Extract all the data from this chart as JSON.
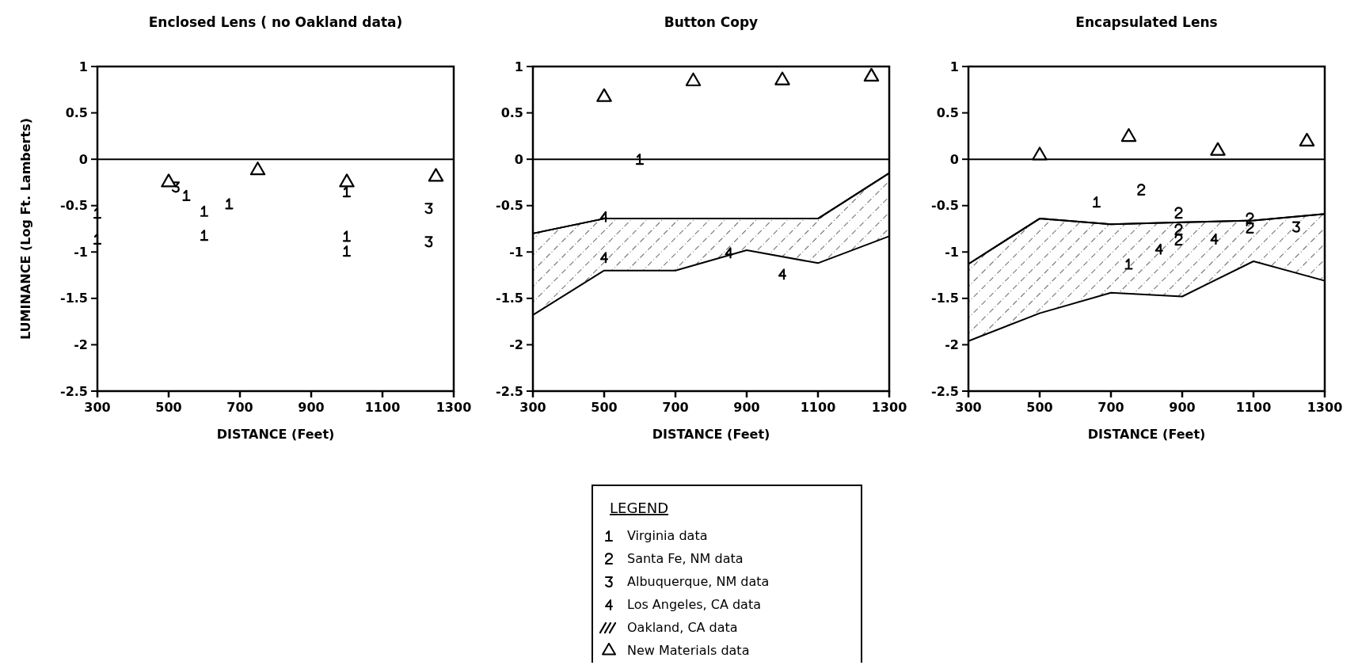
{
  "chart_data": [
    {
      "type": "scatter",
      "title": "Enclosed Lens ( no Oakland data)",
      "xlabel": "DISTANCE (Feet)",
      "ylabel": "LUMINANCE  (Log Ft. Lamberts)",
      "xlim": [
        300,
        1300
      ],
      "xticks": [
        300,
        500,
        700,
        900,
        1100,
        1300
      ],
      "ylim": [
        -2.5,
        1
      ],
      "yticks": [
        1,
        0.5,
        0,
        -0.5,
        -1,
        -1.5,
        -2,
        -2.5
      ],
      "ref_lines": [
        {
          "axis": "y",
          "value": 0
        }
      ],
      "series": [
        {
          "color": "#000000",
          "x": [
            300,
            300,
            550,
            600,
            600,
            670,
            1000,
            1000,
            1000
          ],
          "values": [
            -0.58,
            -0.86,
            -0.39,
            -0.56,
            -0.82,
            -0.48,
            -0.35,
            -0.83,
            -0.99
          ]
        },
        {
          "color": "#000000"
        },
        {
          "color": "#000000",
          "x": [
            520,
            1230,
            1230
          ],
          "values": [
            -0.3,
            -0.53,
            -0.89
          ]
        },
        {
          "color": "#000000"
        },
        {
          "type": "line",
          "color": "#000000"
        },
        {
          "color": "#000000",
          "marker": "triangle",
          "x": [
            500,
            750,
            1000,
            1250
          ],
          "values": [
            -0.25,
            -0.12,
            -0.25,
            -0.19
          ]
        }
      ]
    },
    {
      "type": "scatter",
      "title": "Button Copy",
      "xlabel": "DISTANCE (Feet)",
      "xlim": [
        300,
        1300
      ],
      "xticks": [
        300,
        500,
        700,
        900,
        1100,
        1300
      ],
      "ylim": [
        -2.5,
        1
      ],
      "yticks": [
        1,
        0.5,
        0,
        -0.5,
        -1,
        -1.5,
        -2,
        -2.5
      ],
      "ref_lines": [
        {
          "axis": "y",
          "value": 0
        }
      ],
      "series": [
        {
          "color": "#000000",
          "x": [
            600
          ],
          "values": [
            0
          ]
        },
        {
          "color": "#000000"
        },
        {
          "color": "#000000"
        },
        {
          "color": "#000000",
          "x": [
            500,
            500,
            850,
            1000
          ],
          "values": [
            -0.62,
            -1.06,
            -1.01,
            -1.24
          ]
        },
        {
          "type": "line",
          "color": "#000000",
          "x": [
            300,
            500,
            700,
            900,
            1100,
            1300
          ],
          "values": [
            -0.8,
            -0.64,
            -0.64,
            -0.64,
            -0.64,
            -0.15
          ],
          "upper": [
            -0.8,
            -0.64,
            -0.64,
            -0.64,
            -0.64,
            -0.15
          ],
          "lower": [
            -1.68,
            -1.2,
            -1.2,
            -0.98,
            -1.12,
            -0.83
          ]
        },
        {
          "color": "#000000",
          "marker": "triangle",
          "x": [
            500,
            750,
            1000,
            1250
          ],
          "values": [
            0.67,
            0.84,
            0.85,
            0.89
          ]
        }
      ]
    },
    {
      "type": "scatter",
      "title": "Encapsulated Lens",
      "xlabel": "DISTANCE (Feet)",
      "xlim": [
        300,
        1300
      ],
      "xticks": [
        300,
        500,
        700,
        900,
        1100,
        1300
      ],
      "ylim": [
        -2.5,
        1
      ],
      "yticks": [
        1,
        0.5,
        0,
        -0.5,
        -1,
        -1.5,
        -2,
        -2.5
      ],
      "ref_lines": [
        {
          "axis": "y",
          "value": 0
        }
      ],
      "legend": "bottom",
      "legend_title": "LEGEND",
      "series": [
        {
          "name": "Virginia data",
          "color": "#000000",
          "x": [
            660,
            750
          ],
          "values": [
            -0.46,
            -1.13
          ]
        },
        {
          "name": "Santa Fe, NM data",
          "color": "#000000",
          "x": [
            785,
            890,
            890,
            890,
            1090,
            1090
          ],
          "values": [
            -0.33,
            -0.58,
            -0.76,
            -0.87,
            -0.64,
            -0.74
          ]
        },
        {
          "name": "Albuquerque, NM data",
          "color": "#000000",
          "x": [
            1220
          ],
          "values": [
            -0.73
          ]
        },
        {
          "name": "Los Angeles, CA data",
          "color": "#000000",
          "x": [
            835,
            990
          ],
          "values": [
            -0.97,
            -0.86
          ]
        },
        {
          "name": "Oakland, CA data",
          "type": "line",
          "color": "#000000",
          "x": [
            300,
            500,
            700,
            900,
            1100,
            1300
          ],
          "values": [
            -1.13,
            -0.64,
            -0.7,
            -0.68,
            -0.66,
            -0.59
          ],
          "upper": [
            -1.13,
            -0.64,
            -0.7,
            -0.68,
            -0.66,
            -0.59
          ],
          "lower": [
            -1.96,
            -1.66,
            -1.44,
            -1.48,
            -1.1,
            -1.31
          ]
        },
        {
          "name": "New Materials data",
          "color": "#000000",
          "marker": "triangle",
          "x": [
            500,
            750,
            1000,
            1250
          ],
          "values": [
            0.04,
            0.24,
            0.09,
            0.19
          ]
        }
      ]
    }
  ]
}
